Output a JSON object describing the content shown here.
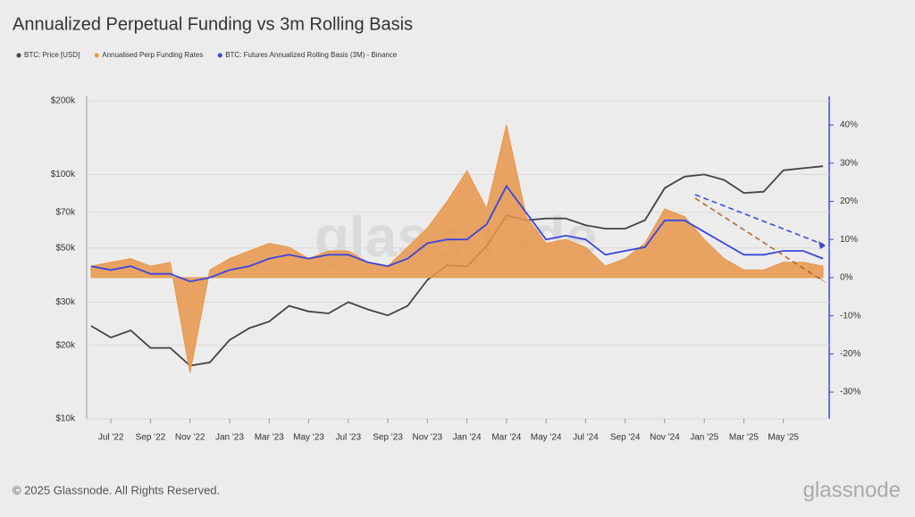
{
  "chart_data": {
    "type": "dual-axis-line-area",
    "title": "Annualized Perpetual Funding vs 3m Rolling Basis",
    "x": [
      "2022-06",
      "2022-07",
      "2022-08",
      "2022-09",
      "2022-10",
      "2022-11",
      "2022-12",
      "2023-01",
      "2023-02",
      "2023-03",
      "2023-04",
      "2023-05",
      "2023-06",
      "2023-07",
      "2023-08",
      "2023-09",
      "2023-10",
      "2023-11",
      "2023-12",
      "2024-01",
      "2024-02",
      "2024-03",
      "2024-04",
      "2024-05",
      "2024-06",
      "2024-07",
      "2024-08",
      "2024-09",
      "2024-10",
      "2024-11",
      "2024-12",
      "2025-01",
      "2025-02",
      "2025-03",
      "2025-04",
      "2025-05",
      "2025-06",
      "2025-07"
    ],
    "xlim": [
      "2022-06",
      "2025-07"
    ],
    "xticks": [
      {
        "value": "2022-07",
        "label": "Jul '22"
      },
      {
        "value": "2022-09",
        "label": "Sep '22"
      },
      {
        "value": "2022-11",
        "label": "Nov '22"
      },
      {
        "value": "2023-01",
        "label": "Jan '23"
      },
      {
        "value": "2023-03",
        "label": "Mar '23"
      },
      {
        "value": "2023-05",
        "label": "May '23"
      },
      {
        "value": "2023-07",
        "label": "Jul '23"
      },
      {
        "value": "2023-09",
        "label": "Sep '23"
      },
      {
        "value": "2023-11",
        "label": "Nov '23"
      },
      {
        "value": "2024-01",
        "label": "Jan '24"
      },
      {
        "value": "2024-03",
        "label": "Mar '24"
      },
      {
        "value": "2024-05",
        "label": "May '24"
      },
      {
        "value": "2024-07",
        "label": "Jul '24"
      },
      {
        "value": "2024-09",
        "label": "Sep '24"
      },
      {
        "value": "2024-11",
        "label": "Nov '24"
      },
      {
        "value": "2025-01",
        "label": "Jan '25"
      },
      {
        "value": "2025-03",
        "label": "Mar '25"
      },
      {
        "value": "2025-05",
        "label": "May '25"
      }
    ],
    "ylim": [
      10000,
      200000
    ],
    "log_scale": true,
    "yticks": [
      {
        "value": 10000,
        "label": "$10k"
      },
      {
        "value": 20000,
        "label": "$20k"
      },
      {
        "value": 30000,
        "label": "$30k"
      },
      {
        "value": 50000,
        "label": "$50k"
      },
      {
        "value": 70000,
        "label": "$70k"
      },
      {
        "value": 100000,
        "label": "$100k"
      },
      {
        "value": 200000,
        "label": "$200k"
      }
    ],
    "y2lim": [
      -37,
      47.5
    ],
    "y2ticks": [
      {
        "value": -30,
        "label": "-30%"
      },
      {
        "value": -20,
        "label": "-20%"
      },
      {
        "value": -10,
        "label": "-10%"
      },
      {
        "value": 0,
        "label": "0%"
      },
      {
        "value": 10,
        "label": "10%"
      },
      {
        "value": 20,
        "label": "20%"
      },
      {
        "value": 30,
        "label": "30%"
      },
      {
        "value": 40,
        "label": "40%"
      }
    ],
    "grid": true,
    "series": [
      {
        "name": "BTC: Price [USD]",
        "color": "#444444",
        "kind": "line",
        "values": [
          24000,
          21500,
          23000,
          19500,
          19500,
          16500,
          17000,
          21000,
          23500,
          25000,
          29000,
          27500,
          27000,
          30000,
          28000,
          26500,
          29000,
          37000,
          42500,
          42000,
          51000,
          68000,
          65000,
          66000,
          66000,
          62000,
          60000,
          60000,
          65000,
          88000,
          98000,
          100000,
          95000,
          84000,
          85000,
          104000,
          106000,
          108000
        ]
      },
      {
        "name": "Annualised Perp Funding Rates",
        "color": "#e8974a",
        "kind": "area",
        "axis": "y2",
        "values": [
          3,
          4,
          5,
          3,
          4,
          -25,
          2,
          5,
          7,
          9,
          8,
          5,
          7,
          7,
          4,
          3,
          8,
          13,
          20,
          28,
          18,
          40,
          16,
          9,
          10,
          8,
          3,
          5,
          9,
          18,
          16,
          10,
          5,
          2,
          2,
          4,
          4,
          3
        ]
      },
      {
        "name": "BTC: Futures Annualized Rolling Basis (3M) - Binance",
        "color": "#3a46e0",
        "kind": "line",
        "axis": "y2",
        "values": [
          3,
          2,
          3,
          1,
          1,
          -1,
          0,
          2,
          3,
          5,
          6,
          5,
          6,
          6,
          4,
          3,
          5,
          9,
          10,
          10,
          14,
          24,
          17,
          10,
          11,
          10,
          6,
          7,
          8,
          15,
          15,
          12,
          9,
          6,
          6,
          7,
          7,
          5
        ]
      }
    ]
  },
  "watermark": "glassnode",
  "footer": {
    "copyright": "© 2025 Glassnode. All Rights Reserved.",
    "logo": "glassnode"
  }
}
